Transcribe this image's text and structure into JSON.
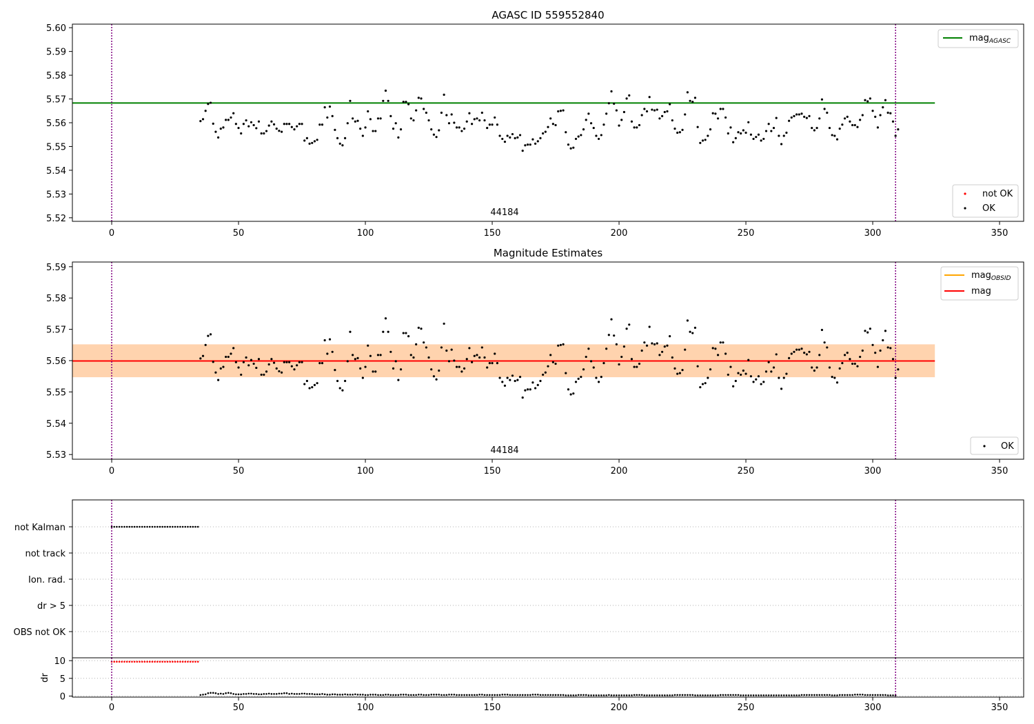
{
  "chart_data": [
    {
      "type": "scatter",
      "title": "AGASC ID 559552840",
      "annotation": "44184",
      "xlim": [
        -15.5,
        359.5
      ],
      "ylim": [
        5.5185,
        5.6015
      ],
      "x_ticks": [
        0,
        50,
        100,
        150,
        200,
        250,
        300,
        350
      ],
      "y_ticks": [
        5.52,
        5.53,
        5.54,
        5.55,
        5.56,
        5.57,
        5.58,
        5.59,
        5.6
      ],
      "lines": [
        {
          "name": "mag_AGASC",
          "color": "#008000",
          "y": 5.5683,
          "x_range": [
            -15.5,
            324.5
          ]
        }
      ],
      "vlines": [
        0,
        309
      ],
      "legend_upper": [
        {
          "label": "mag",
          "sub": "AGASC",
          "color": "#008000"
        }
      ],
      "legend_lower": [
        {
          "label": "not OK",
          "color": "#ff0000"
        },
        {
          "label": "OK",
          "color": "#000000"
        }
      ],
      "series_ref": "ok_points",
      "x_start": 35,
      "x_step": 1
    },
    {
      "type": "scatter",
      "title": "Magnitude Estimates",
      "annotation": "44184",
      "xlim": [
        -15.5,
        359.5
      ],
      "ylim": [
        5.5285,
        5.5915
      ],
      "x_ticks": [
        0,
        50,
        100,
        150,
        200,
        250,
        300,
        350
      ],
      "y_ticks": [
        5.53,
        5.54,
        5.55,
        5.56,
        5.57,
        5.58,
        5.59
      ],
      "lines": [
        {
          "name": "mag",
          "color": "#ff0000",
          "y": 5.5599,
          "x_range": [
            -15.5,
            324.5
          ]
        }
      ],
      "bands": [
        {
          "ylo": 5.5547,
          "yhi": 5.5652,
          "x_range": [
            -15.5,
            324.5
          ],
          "color": "#ffc0cb",
          "opacity": 0.45
        },
        {
          "ylo": 5.5547,
          "yhi": 5.5652,
          "x_range": [
            -15.5,
            324.5
          ],
          "color": "#ffa500",
          "opacity": 0.25
        }
      ],
      "vlines": [
        0,
        309
      ],
      "legend_upper": [
        {
          "label": "mag",
          "sub": "OBSID",
          "color": "#ffa500"
        },
        {
          "label": "mag",
          "sub": "",
          "color": "#ff0000"
        }
      ],
      "legend_lower": [
        {
          "label": "OK",
          "color": "#000000"
        }
      ],
      "series_ref": "ok_points",
      "x_start": 35,
      "x_step": 1
    },
    {
      "type": "scatter",
      "title": "",
      "xlim": [
        -15.5,
        359.5
      ],
      "categories": [
        "not Kalman",
        "not track",
        "Ion. rad.",
        "dr > 5",
        "OBS not OK"
      ],
      "flags": {
        "not Kalman": [
          0,
          34
        ]
      },
      "vlines": [
        0,
        309
      ]
    },
    {
      "type": "scatter",
      "title": "",
      "ylabel": "dr",
      "xlim": [
        -15.5,
        359.5
      ],
      "ylim": [
        -0.3,
        10.8
      ],
      "x_ticks": [
        0,
        50,
        100,
        150,
        200,
        250,
        300,
        350
      ],
      "y_ticks": [
        0,
        5,
        10
      ],
      "not_ok": {
        "x_range": [
          0,
          34
        ],
        "value": 9.7,
        "color": "#ff0000"
      },
      "ok_dr_values": [
        0.3,
        0.4,
        0.5,
        0.8,
        0.9,
        0.9,
        0.8,
        0.6,
        0.7,
        0.6,
        0.8,
        0.9,
        0.8,
        0.6,
        0.5,
        0.5,
        0.5,
        0.6,
        0.6,
        0.7,
        0.7,
        0.6,
        0.6,
        0.5,
        0.5,
        0.6,
        0.6,
        0.7,
        0.6,
        0.6,
        0.6,
        0.7,
        0.7,
        0.8,
        0.8,
        0.6,
        0.7,
        0.6,
        0.6,
        0.6,
        0.7,
        0.7,
        0.6,
        0.6,
        0.6,
        0.5,
        0.5,
        0.5,
        0.6,
        0.5,
        0.4,
        0.4,
        0.5,
        0.5,
        0.4,
        0.4,
        0.4,
        0.5,
        0.4,
        0.4,
        0.4,
        0.5,
        0.4,
        0.4,
        0.4,
        0.3,
        0.3,
        0.4,
        0.4,
        0.4,
        0.3,
        0.3,
        0.3,
        0.4,
        0.4,
        0.3,
        0.3,
        0.3,
        0.3,
        0.4,
        0.4,
        0.4,
        0.3,
        0.3,
        0.3,
        0.3,
        0.4,
        0.4,
        0.3,
        0.3,
        0.3,
        0.4,
        0.4,
        0.4,
        0.4,
        0.3,
        0.3,
        0.3,
        0.4,
        0.4,
        0.4,
        0.3,
        0.3,
        0.3,
        0.3,
        0.3,
        0.3,
        0.3,
        0.3,
        0.3,
        0.4,
        0.4,
        0.3,
        0.3,
        0.3,
        0.3,
        0.3,
        0.3,
        0.3,
        0.4,
        0.4,
        0.4,
        0.3,
        0.3,
        0.3,
        0.3,
        0.3,
        0.3,
        0.3,
        0.3,
        0.3,
        0.4,
        0.4,
        0.4,
        0.3,
        0.3,
        0.3,
        0.3,
        0.3,
        0.3,
        0.3,
        0.3,
        0.3,
        0.3,
        0.2,
        0.2,
        0.2,
        0.2,
        0.2,
        0.3,
        0.3,
        0.3,
        0.3,
        0.2,
        0.2,
        0.2,
        0.2,
        0.2,
        0.2,
        0.2,
        0.2,
        0.3,
        0.2,
        0.2,
        0.2,
        0.2,
        0.2,
        0.2,
        0.2,
        0.2,
        0.2,
        0.3,
        0.3,
        0.3,
        0.3,
        0.2,
        0.2,
        0.2,
        0.2,
        0.2,
        0.2,
        0.2,
        0.2,
        0.2,
        0.2,
        0.2,
        0.2,
        0.3,
        0.3,
        0.3,
        0.3,
        0.3,
        0.3,
        0.3,
        0.3,
        0.2,
        0.2,
        0.2,
        0.2,
        0.2,
        0.2,
        0.2,
        0.2,
        0.2,
        0.2,
        0.3,
        0.3,
        0.3,
        0.3,
        0.3,
        0.3,
        0.3,
        0.3,
        0.2,
        0.2,
        0.2,
        0.2,
        0.2,
        0.2,
        0.2,
        0.2,
        0.2,
        0.2,
        0.2,
        0.2,
        0.2,
        0.2,
        0.2,
        0.2,
        0.2,
        0.2,
        0.2,
        0.2,
        0.2,
        0.2,
        0.2,
        0.2,
        0.3,
        0.3,
        0.3,
        0.3,
        0.3,
        0.3,
        0.3,
        0.3,
        0.3,
        0.3,
        0.3,
        0.3,
        0.2,
        0.2,
        0.2,
        0.3,
        0.3,
        0.3,
        0.3,
        0.3,
        0.3,
        0.4,
        0.4,
        0.4,
        0.4,
        0.3,
        0.3,
        0.3,
        0.3,
        0.3,
        0.3,
        0.3,
        0.3,
        0.3,
        0.2,
        0.2,
        0.2,
        0.2
      ]
    }
  ],
  "ok_points": [
    5.5607,
    5.5615,
    5.565,
    5.5679,
    5.5684,
    5.5596,
    5.5562,
    5.5538,
    5.5575,
    5.558,
    5.5612,
    5.5612,
    5.5622,
    5.564,
    5.5595,
    5.5578,
    5.5555,
    5.5595,
    5.561,
    5.5585,
    5.5602,
    5.559,
    5.5577,
    5.5605,
    5.5555,
    5.5555,
    5.5565,
    5.5588,
    5.5605,
    5.5593,
    5.5575,
    5.5566,
    5.5562,
    5.5595,
    5.5595,
    5.5595,
    5.5582,
    5.5572,
    5.5585,
    5.5595,
    5.5595,
    5.5525,
    5.5535,
    5.5512,
    5.5515,
    5.5522,
    5.5528,
    5.5592,
    5.5592,
    5.5665,
    5.5622,
    5.5668,
    5.5628,
    5.557,
    5.5535,
    5.5512,
    5.5505,
    5.5535,
    5.5598,
    5.5692,
    5.5618,
    5.5605,
    5.5608,
    5.5575,
    5.5545,
    5.558,
    5.5648,
    5.5615,
    5.5565,
    5.5565,
    5.5618,
    5.5618,
    5.5692,
    5.5735,
    5.5692,
    5.5628,
    5.5575,
    5.5598,
    5.5538,
    5.5572,
    5.5688,
    5.5688,
    5.5678,
    5.5618,
    5.561,
    5.5652,
    5.5705,
    5.5702,
    5.5658,
    5.5642,
    5.561,
    5.5572,
    5.555,
    5.554,
    5.5568,
    5.5642,
    5.5718,
    5.5632,
    5.5598,
    5.5635,
    5.56,
    5.558,
    5.558,
    5.5565,
    5.5575,
    5.5605,
    5.564,
    5.5595,
    5.5615,
    5.5618,
    5.561,
    5.5642,
    5.561,
    5.5578,
    5.5592,
    5.5592,
    5.5622,
    5.5592,
    5.5545,
    5.5532,
    5.552,
    5.5545,
    5.5538,
    5.5552,
    5.5535,
    5.5538,
    5.5548,
    5.5482,
    5.5505,
    5.5508,
    5.5508,
    5.553,
    5.5512,
    5.5522,
    5.5535,
    5.5555,
    5.5562,
    5.5582,
    5.5618,
    5.5595,
    5.559,
    5.5648,
    5.565,
    5.5652,
    5.556,
    5.5508,
    5.5492,
    5.5495,
    5.5532,
    5.5542,
    5.5548,
    5.5572,
    5.5612,
    5.5638,
    5.5598,
    5.5578,
    5.5545,
    5.5532,
    5.5548,
    5.5592,
    5.5638,
    5.5682,
    5.5732,
    5.568,
    5.5652,
    5.5588,
    5.5612,
    5.5645,
    5.5702,
    5.5715,
    5.5605,
    5.558,
    5.558,
    5.559,
    5.5632,
    5.5658,
    5.5648,
    5.5708,
    5.5655,
    5.5652,
    5.5655,
    5.5618,
    5.5628,
    5.5645,
    5.5648,
    5.5678,
    5.561,
    5.5575,
    5.5558,
    5.556,
    5.557,
    5.5635,
    5.5728,
    5.5692,
    5.5688,
    5.5705,
    5.5582,
    5.5515,
    5.5525,
    5.5528,
    5.5545,
    5.5572,
    5.564,
    5.5638,
    5.5618,
    5.5658,
    5.5658,
    5.5622,
    5.5555,
    5.558,
    5.5518,
    5.5535,
    5.556,
    5.5555,
    5.5568,
    5.5558,
    5.5602,
    5.555,
    5.5532,
    5.554,
    5.555,
    5.5525,
    5.5532,
    5.5565,
    5.5595,
    5.5565,
    5.5578,
    5.562,
    5.5545,
    5.551,
    5.5545,
    5.5558,
    5.5608,
    5.5622,
    5.5628,
    5.5635,
    5.5635,
    5.5638,
    5.5625,
    5.562,
    5.5628,
    5.5578,
    5.5568,
    5.5578,
    5.5618,
    5.5698,
    5.5658,
    5.5642,
    5.5578,
    5.5548,
    5.5545,
    5.553,
    5.5575,
    5.5592,
    5.5618,
    5.5625,
    5.5605,
    5.559,
    5.559,
    5.5582,
    5.5612,
    5.5632,
    5.5695,
    5.569,
    5.5702,
    5.565,
    5.5625,
    5.558,
    5.5632,
    5.5665,
    5.5695,
    5.5642,
    5.564,
    5.5605,
    5.5545,
    5.5572
  ]
}
